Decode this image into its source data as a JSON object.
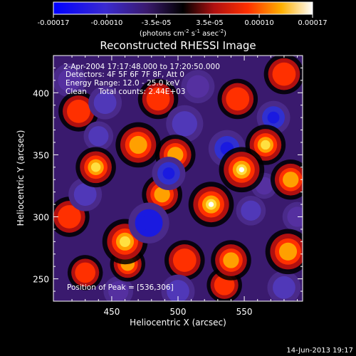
{
  "colorbar": {
    "tick_labels": [
      "-0.00017",
      "-0.00010",
      "-3.5e-05",
      "3.5e-05",
      "0.00010",
      "0.00017"
    ],
    "tick_values": [
      -0.00017,
      -0.0001,
      -3.5e-05,
      3.5e-05,
      0.0001,
      0.00017
    ],
    "range": [
      -0.00017,
      0.00017
    ],
    "unit_label": "(photons cm",
    "unit_exp1": "-2",
    "unit_mid": " s",
    "unit_exp2": "-1",
    "unit_mid2": " asec",
    "unit_exp3": "-2",
    "unit_close": ")"
  },
  "chart_data": {
    "type": "heatmap",
    "title": "Reconstructed RHESSI Image",
    "xlabel": "Heliocentric X (arcsec)",
    "ylabel": "Heliocentric Y (arcsec)",
    "xlim": [
      406,
      594
    ],
    "ylim": [
      232,
      430
    ],
    "x_ticks": [
      450,
      500,
      550
    ],
    "y_ticks": [
      250,
      300,
      350,
      400
    ],
    "colormap": "RHESSI blue-purple-black-red-yellow-white",
    "annotations": [
      "2-Apr-2004 17:17:48.000 to 17:20:50.000",
      "Detectors: 4F 5F 6F 7F 8F, Att 0",
      "Energy Range: 12.0 - 25.0 keV",
      "Clean     Total counts: 2.44E+03",
      "Position of Peak = [536,306]"
    ],
    "peak": {
      "x": 536,
      "y": 306
    },
    "blobs": [
      {
        "x": 525,
        "y": 310,
        "v": 1.0,
        "s": 9
      },
      {
        "x": 548,
        "y": 338,
        "v": 0.9,
        "s": 9
      },
      {
        "x": 566,
        "y": 358,
        "v": 0.85,
        "s": 8
      },
      {
        "x": 583,
        "y": 272,
        "v": 0.7,
        "s": 9
      },
      {
        "x": 585,
        "y": 330,
        "v": 0.6,
        "s": 8
      },
      {
        "x": 460,
        "y": 280,
        "v": 0.75,
        "s": 9
      },
      {
        "x": 462,
        "y": 262,
        "v": 0.55,
        "s": 7
      },
      {
        "x": 438,
        "y": 340,
        "v": 0.75,
        "s": 8
      },
      {
        "x": 470,
        "y": 358,
        "v": 0.7,
        "s": 9
      },
      {
        "x": 488,
        "y": 318,
        "v": 0.65,
        "s": 8
      },
      {
        "x": 498,
        "y": 350,
        "v": 0.6,
        "s": 8
      },
      {
        "x": 540,
        "y": 265,
        "v": 0.55,
        "s": 8
      },
      {
        "x": 535,
        "y": 245,
        "v": 0.5,
        "s": 7
      },
      {
        "x": 430,
        "y": 255,
        "v": 0.45,
        "s": 7
      },
      {
        "x": 425,
        "y": 385,
        "v": 0.45,
        "s": 8
      },
      {
        "x": 485,
        "y": 395,
        "v": 0.45,
        "s": 8
      },
      {
        "x": 545,
        "y": 395,
        "v": 0.5,
        "s": 8
      },
      {
        "x": 580,
        "y": 415,
        "v": 0.4,
        "s": 8
      },
      {
        "x": 418,
        "y": 300,
        "v": 0.35,
        "s": 8
      },
      {
        "x": 505,
        "y": 265,
        "v": 0.45,
        "s": 8
      },
      {
        "x": 478,
        "y": 295,
        "v": -0.95,
        "s": 11
      },
      {
        "x": 493,
        "y": 335,
        "v": -0.75,
        "s": 9
      },
      {
        "x": 537,
        "y": 355,
        "v": -0.7,
        "s": 10
      },
      {
        "x": 572,
        "y": 380,
        "v": -0.75,
        "s": 9
      },
      {
        "x": 430,
        "y": 318,
        "v": -0.55,
        "s": 9
      },
      {
        "x": 445,
        "y": 392,
        "v": -0.5,
        "s": 9
      },
      {
        "x": 555,
        "y": 305,
        "v": -0.45,
        "s": 8
      },
      {
        "x": 505,
        "y": 375,
        "v": -0.55,
        "s": 10
      },
      {
        "x": 440,
        "y": 365,
        "v": -0.45,
        "s": 8
      },
      {
        "x": 580,
        "y": 243,
        "v": -0.5,
        "s": 9
      },
      {
        "x": 500,
        "y": 240,
        "v": -0.45,
        "s": 9
      },
      {
        "x": 418,
        "y": 410,
        "v": -0.35,
        "s": 9
      },
      {
        "x": 515,
        "y": 405,
        "v": -0.4,
        "s": 9
      },
      {
        "x": 590,
        "y": 300,
        "v": -0.35,
        "s": 8
      },
      {
        "x": 455,
        "y": 240,
        "v": -0.35,
        "s": 8
      },
      {
        "x": 565,
        "y": 325,
        "v": -0.35,
        "s": 7
      }
    ]
  },
  "footer": {
    "date": "14-Jun-2013 19:17"
  }
}
